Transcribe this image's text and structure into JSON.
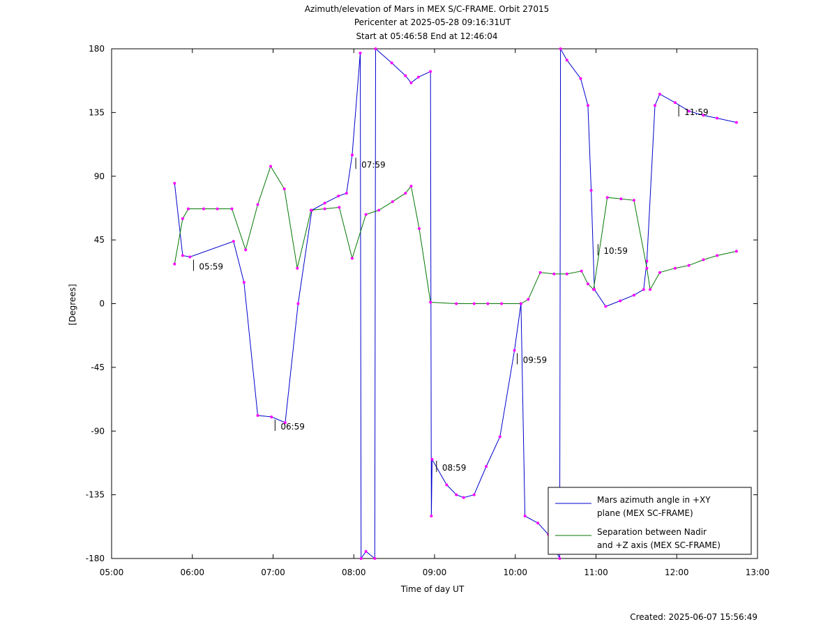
{
  "chart_data": {
    "type": "line",
    "title": "Azimuth/elevation of Mars in MEX S/C-FRAME.  Orbit 27015",
    "subtitle": [
      "Pericenter at 2025-05-28 09:16:31UT",
      "Start at 05:46:58 End at 12:46:04"
    ],
    "xlabel": "Time of day UT",
    "ylabel": "[Degrees]",
    "footer": "Created: 2025-06-07 15:56:49",
    "xlim": [
      5,
      13
    ],
    "xticks": [
      {
        "value": 5,
        "label": "05:00"
      },
      {
        "value": 6,
        "label": "06:00"
      },
      {
        "value": 7,
        "label": "07:00"
      },
      {
        "value": 8,
        "label": "08:00"
      },
      {
        "value": 9,
        "label": "09:00"
      },
      {
        "value": 10,
        "label": "10:00"
      },
      {
        "value": 11,
        "label": "11:00"
      },
      {
        "value": 12,
        "label": "12:00"
      },
      {
        "value": 13,
        "label": "13:00"
      }
    ],
    "ylim": [
      -180,
      180
    ],
    "yticks": [
      -180,
      -135,
      -90,
      -45,
      0,
      45,
      90,
      135,
      180
    ],
    "grid": false,
    "legend": "lower right",
    "marker_color": "#ff00ff",
    "series": [
      {
        "name": "Mars azimuth angle in +XY\nplane (MEX SC-FRAME)",
        "color": "#0000cc",
        "x": [
          5.78,
          5.88,
          5.97,
          6.51,
          6.64,
          6.81,
          6.98,
          7.15,
          7.31,
          7.48,
          7.64,
          7.81,
          7.91,
          7.98,
          8.08,
          8.09,
          8.15,
          8.26,
          8.27,
          8.47,
          8.64,
          8.71,
          8.8,
          8.95,
          8.96,
          8.97,
          9.15,
          9.27,
          9.36,
          9.49,
          9.64,
          9.81,
          9.99,
          10.07,
          10.12,
          10.28,
          10.41,
          10.55,
          10.56,
          10.64,
          10.81,
          10.9,
          10.94,
          10.98,
          11.12,
          11.3,
          11.47,
          11.59,
          11.63,
          11.73,
          11.79,
          11.98,
          12.15,
          12.33,
          12.5,
          12.74
        ],
        "values": [
          85,
          34,
          33,
          44,
          15,
          -79,
          -80,
          -84,
          0,
          66,
          71,
          76,
          78,
          105,
          177,
          -180,
          -175,
          -180,
          180,
          170,
          161,
          156,
          160,
          164,
          -150,
          -110,
          -128,
          -135,
          -137,
          -135,
          -115,
          -94,
          -33,
          0,
          -150,
          -155,
          -163,
          -180,
          180,
          172,
          159,
          140,
          80,
          10,
          -2,
          2,
          6,
          10,
          30,
          140,
          148,
          142,
          136,
          133,
          131,
          128
        ]
      },
      {
        "name": "Separation between Nadir\nand +Z axis (MEX SC-FRAME)",
        "color": "#007700",
        "x": [
          5.78,
          5.88,
          5.95,
          6.14,
          6.31,
          6.49,
          6.66,
          6.81,
          6.97,
          7.14,
          7.3,
          7.47,
          7.64,
          7.82,
          7.98,
          8.15,
          8.31,
          8.48,
          8.64,
          8.71,
          8.81,
          8.95,
          9.27,
          9.49,
          9.66,
          9.83,
          10.07,
          10.16,
          10.31,
          10.48,
          10.64,
          10.82,
          10.9,
          10.97,
          11.14,
          11.31,
          11.47,
          11.63,
          11.67,
          11.79,
          11.98,
          12.15,
          12.33,
          12.5,
          12.74
        ],
        "values": [
          28,
          60,
          67,
          67,
          67,
          67,
          38,
          70,
          97,
          81,
          25,
          66,
          67,
          68,
          32,
          63,
          66,
          72,
          78,
          83,
          53,
          1,
          0,
          0,
          0,
          0,
          0,
          3,
          22,
          21,
          21,
          23,
          14,
          10,
          75,
          74,
          73,
          25,
          10,
          22,
          25,
          27,
          31,
          34,
          37
        ]
      }
    ],
    "annotations": [
      {
        "text": "05:59",
        "x": 5.98,
        "y": 33
      },
      {
        "text": "06:59",
        "x": 6.99,
        "y": -80
      },
      {
        "text": "07:59",
        "x": 7.99,
        "y": 105
      },
      {
        "text": "08:59",
        "x": 8.99,
        "y": -109
      },
      {
        "text": "09:59",
        "x": 9.99,
        "y": -33
      },
      {
        "text": "10:59",
        "x": 10.99,
        "y": 44
      },
      {
        "text": "11:59",
        "x": 11.99,
        "y": 142
      }
    ]
  }
}
